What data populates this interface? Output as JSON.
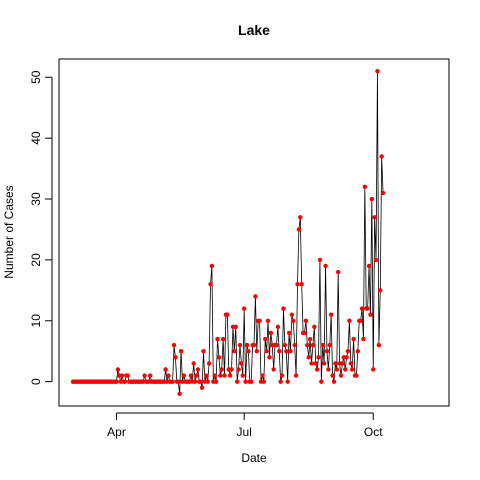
{
  "chart_data": {
    "type": "line",
    "title": "Lake",
    "xlabel": "Date",
    "ylabel": "Number of Cases",
    "x_ticks": [
      "Apr",
      "Jul",
      "Oct"
    ],
    "x_tick_dates": [
      "2020-04-01",
      "2020-07-01",
      "2020-10-01"
    ],
    "y_ticks": [
      0,
      10,
      20,
      30,
      40,
      50
    ],
    "xlim": [
      "2020-02-20",
      "2020-11-24"
    ],
    "ylim": [
      -4,
      53
    ],
    "grid": false,
    "line_color": "#000000",
    "point_color": "#ff0000",
    "series": [
      {
        "x_start": "2020-03-01",
        "values": [
          0,
          0,
          0,
          0,
          0,
          0,
          0,
          0,
          0,
          0,
          0,
          0,
          0,
          0,
          0,
          0,
          0,
          0,
          0,
          0,
          0,
          0,
          0,
          0,
          0,
          0,
          0,
          0,
          0,
          0,
          0,
          0,
          2,
          1,
          0,
          1,
          0,
          0,
          1,
          1,
          0,
          0,
          0,
          0,
          0,
          0,
          0,
          0,
          0,
          0,
          0,
          1,
          0,
          0,
          0,
          1,
          0,
          0,
          0,
          0,
          0,
          0,
          0,
          0,
          0,
          0,
          2,
          0,
          1,
          0,
          0,
          0,
          6,
          4,
          0,
          0,
          -2,
          5,
          0,
          1,
          0,
          0,
          0,
          0,
          1,
          0,
          3,
          0,
          1,
          2,
          0,
          0,
          -1,
          5,
          0,
          1,
          0,
          3,
          16,
          19,
          0,
          1,
          0,
          7,
          4,
          1,
          2,
          7,
          1,
          11,
          11,
          2,
          1,
          2,
          9,
          5,
          9,
          0,
          2,
          6,
          3,
          1,
          12,
          0,
          6,
          5,
          0,
          0,
          6,
          6,
          14,
          5,
          10,
          10,
          0,
          1,
          0,
          7,
          5,
          10,
          4,
          8,
          6,
          2,
          6,
          6,
          9,
          5,
          0,
          1,
          12,
          6,
          5,
          0,
          8,
          5,
          11,
          10,
          6,
          1,
          16,
          25,
          27,
          16,
          8,
          8,
          10,
          6,
          4,
          7,
          3,
          6,
          9,
          3,
          2,
          4,
          20,
          0,
          6,
          3,
          19,
          5,
          2,
          6,
          11,
          1,
          0,
          3,
          2,
          18,
          3,
          1,
          3,
          4,
          2,
          4,
          5,
          10,
          3,
          2,
          7,
          1,
          1,
          5,
          10,
          10,
          12,
          7,
          32,
          12,
          12,
          19,
          11,
          30,
          2,
          27,
          20,
          51,
          6,
          15,
          37,
          31
        ]
      }
    ]
  }
}
